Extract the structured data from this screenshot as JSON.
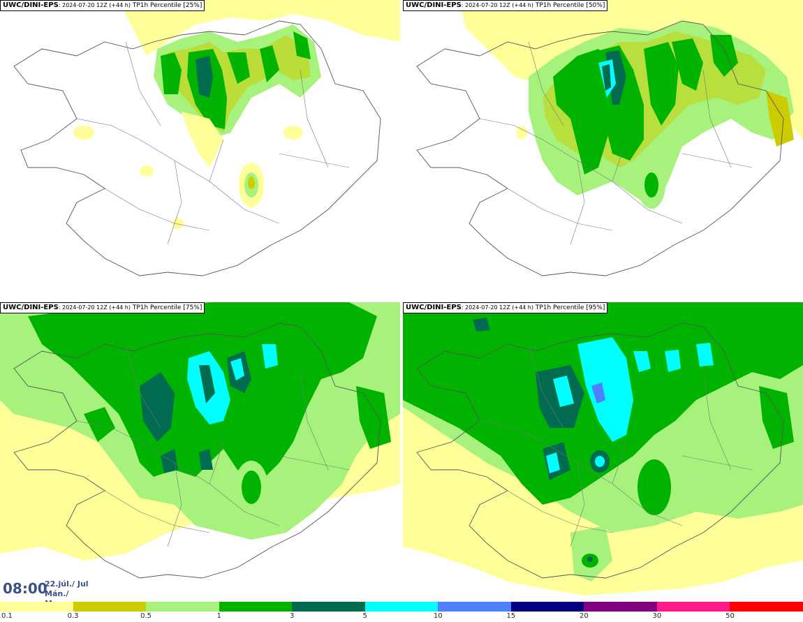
{
  "panels": [
    {
      "model": "UWC/DINI-EPS",
      "run": ": 2024-07-20 12Z (+44 h)",
      "field": " TP1h Percentile [25%]"
    },
    {
      "model": "UWC/DINI-EPS",
      "run": ": 2024-07-20 12Z (+44 h)",
      "field": " TP1h Percentile [50%]"
    },
    {
      "model": "UWC/DINI-EPS",
      "run": ": 2024-07-20 12Z (+44 h)",
      "field": " TP1h Percentile [75%]"
    },
    {
      "model": "UWC/DINI-EPS",
      "run": ": 2024-07-20 12Z (+44 h)",
      "field": " TP1h Percentile [95%]"
    }
  ],
  "valid": {
    "time": "08:00",
    "date_line1": "22.júl./ Jul",
    "date_line2": "Mán./ Mon"
  },
  "colorbar": {
    "colors": [
      "#ffff99",
      "#cccc00",
      "#a6f27d",
      "#00b300",
      "#006b4f",
      "#00ffff",
      "#4d7fff",
      "#000080",
      "#800080",
      "#ff1a8c",
      "#ff0000"
    ],
    "ticks": [
      "0.1",
      "0.3",
      "0.5",
      "1",
      "3",
      "5",
      "10",
      "15",
      "20",
      "30",
      "50"
    ]
  }
}
